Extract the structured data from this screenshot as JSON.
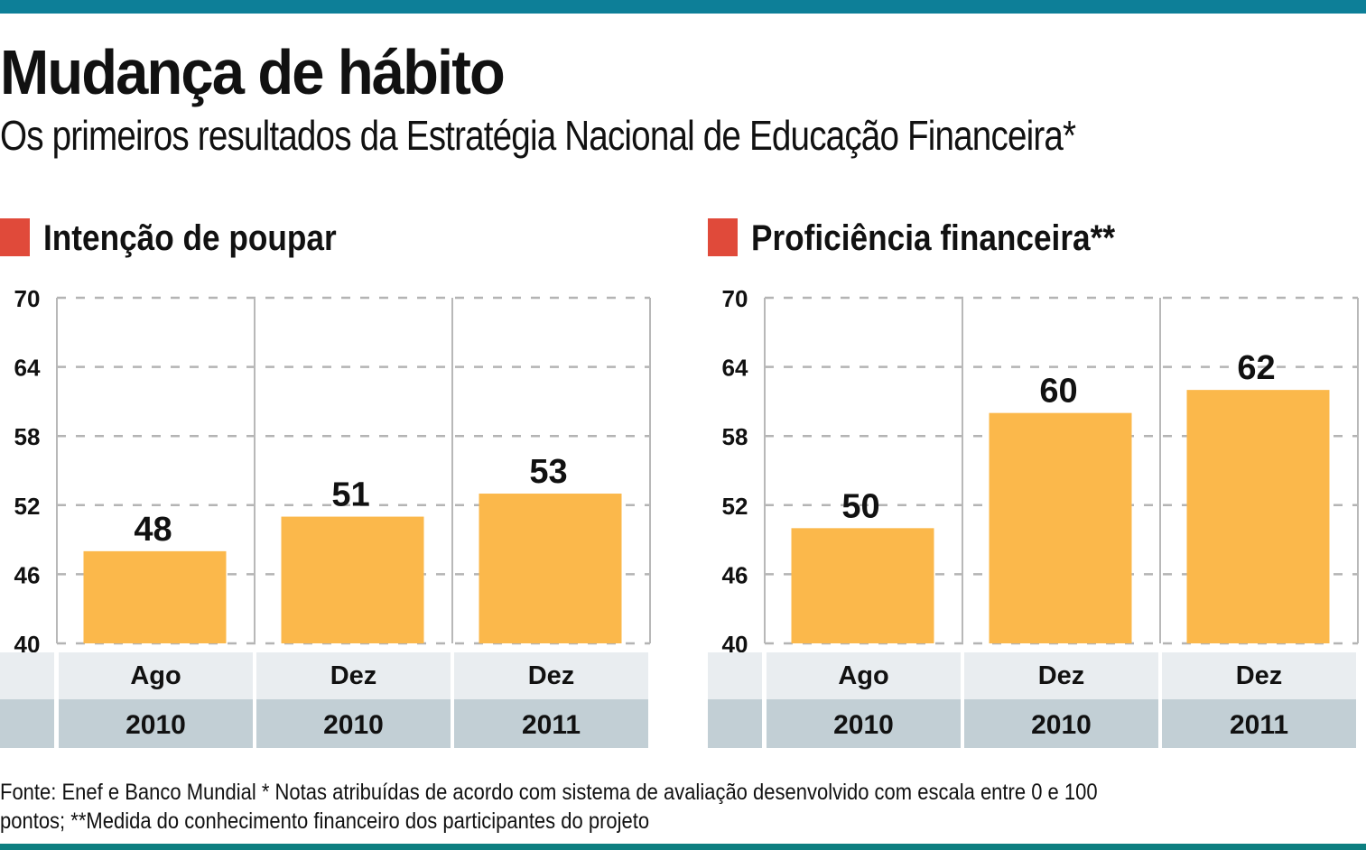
{
  "title": "Mudança de hábito",
  "subtitle": "Os primeiros resultados da Estratégia Nacional de Educação Financeira*",
  "colors": {
    "bar": "#fbb84b",
    "marker": "#e04a3a",
    "top_bar": "#0d7f98",
    "month_row": "#e9edf0",
    "year_row": "#c2cfd5"
  },
  "footer": {
    "line1": "Fonte: Enef e Banco Mundial * Notas atribuídas de acordo com sistema de avaliação desenvolvido com escala entre 0 e 100",
    "line2": "pontos; **Medida do conhecimento financeiro dos participantes do projeto"
  },
  "chart_data": [
    {
      "type": "bar",
      "title": "Intenção de poupar",
      "categories": [
        "Ago 2010",
        "Dez 2010",
        "Dez 2011"
      ],
      "months": [
        "Ago",
        "Dez",
        "Dez"
      ],
      "years": [
        "2010",
        "2010",
        "2011"
      ],
      "values": [
        48,
        51,
        53
      ],
      "data_labels": [
        "48",
        "51",
        "53"
      ],
      "ylim": [
        40,
        70
      ],
      "yticks": [
        40,
        46,
        52,
        58,
        64,
        70
      ],
      "ytick_labels": [
        "40",
        "46",
        "52",
        "58",
        "64",
        "70"
      ],
      "xlabel": "",
      "ylabel": "",
      "grid": true
    },
    {
      "type": "bar",
      "title": "Proficiência financeira**",
      "categories": [
        "Ago 2010",
        "Dez 2010",
        "Dez 2011"
      ],
      "months": [
        "Ago",
        "Dez",
        "Dez"
      ],
      "years": [
        "2010",
        "2010",
        "2011"
      ],
      "values": [
        50,
        60,
        62
      ],
      "data_labels": [
        "50",
        "60",
        "62"
      ],
      "ylim": [
        40,
        70
      ],
      "yticks": [
        40,
        46,
        52,
        58,
        64,
        70
      ],
      "ytick_labels": [
        "40",
        "46",
        "52",
        "58",
        "64",
        "70"
      ],
      "xlabel": "",
      "ylabel": "",
      "grid": true
    }
  ]
}
